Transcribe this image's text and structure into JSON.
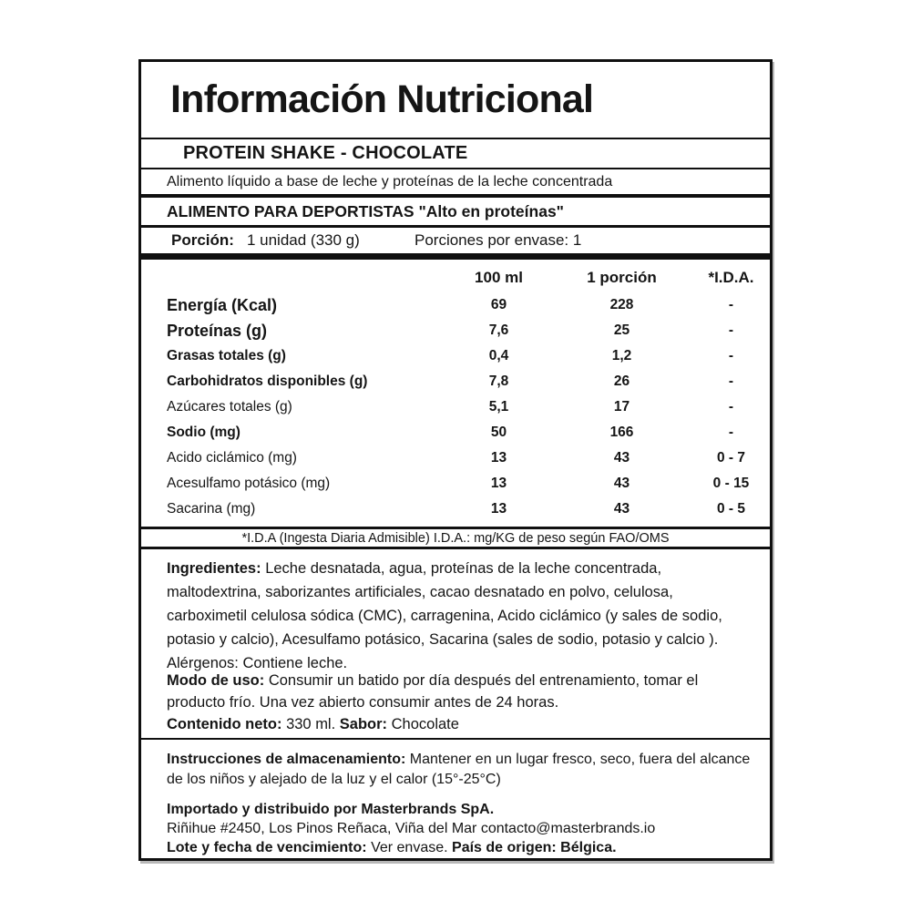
{
  "colors": {
    "ink": "#151515",
    "background": "#ffffff"
  },
  "label": {
    "title": "Información Nutricional",
    "product": "PROTEIN SHAKE - CHOCOLATE",
    "description": "Alimento líquido a base de leche y proteínas de la leche concentrada",
    "claim": "ALIMENTO PARA DEPORTISTAS \"Alto en proteínas\"",
    "serving": {
      "label": "Porción:",
      "value": "1 unidad (330 g)",
      "per_container": "Porciones por envase: 1"
    },
    "table": {
      "columns": [
        "100 ml",
        "1 porción",
        "*I.D.A."
      ],
      "rows": [
        {
          "name": "Energía (Kcal)",
          "per100": "69",
          "porcion": "228",
          "ida": "-"
        },
        {
          "name": "Proteínas (g)",
          "per100": "7,6",
          "porcion": "25",
          "ida": "-"
        },
        {
          "name": "Grasas totales (g)",
          "per100": "0,4",
          "porcion": "1,2",
          "ida": "-"
        },
        {
          "name": "Carbohidratos disponibles (g)",
          "per100": "7,8",
          "porcion": "26",
          "ida": "-"
        },
        {
          "name": "Azúcares totales (g)",
          "per100": "5,1",
          "porcion": "17",
          "ida": "-"
        },
        {
          "name": "Sodio (mg)",
          "per100": "50",
          "porcion": "166",
          "ida": "-"
        },
        {
          "name": "Acido ciclámico (mg)",
          "per100": "13",
          "porcion": "43",
          "ida": "0 - 7"
        },
        {
          "name": "Acesulfamo potásico (mg)",
          "per100": "13",
          "porcion": "43",
          "ida": "0 - 15"
        },
        {
          "name": "Sacarina (mg)",
          "per100": "13",
          "porcion": "43",
          "ida": "0 - 5"
        }
      ],
      "footnote": "*I.D.A (Ingesta Diaria Admisible) I.D.A.: mg/KG de peso según FAO/OMS"
    },
    "ingredients": {
      "label": "Ingredientes:",
      "text": "Leche desnatada, agua, proteínas de la leche concentrada, maltodextrina, saborizantes artificiales, cacao desnatado en polvo, celulosa, carboximetil celulosa sódica (CMC), carragenina, Acido ciclámico (y sales de sodio, potasio y calcio), Acesulfamo potásico, Sacarina (sales de sodio, potasio y calcio ). Alérgenos: Contiene leche."
    },
    "modo": {
      "label": "Modo de uso:",
      "text": "Consumir un batido por día después del entrenamiento, tomar el producto frío. Una vez abierto consumir antes de 24 horas."
    },
    "contenido": {
      "label": "Contenido neto:",
      "value": "330 ml.",
      "sabor_label": "Sabor:",
      "sabor_value": "Chocolate"
    },
    "storage": {
      "label": "Instrucciones de almacenamiento:",
      "text": "Mantener en un lugar fresco, seco, fuera del alcance de los niños y alejado de la luz y el calor (15°-25°C)"
    },
    "importer": {
      "title": "Importado y distribuido por Masterbrands SpA.",
      "address": "Riñihue #2450, Los Pinos Reñaca, Viña del Mar contacto@masterbrands.io",
      "lote_label": "Lote y fecha de vencimiento:",
      "lote_value": "Ver envase.",
      "origin_label": "País de origen:",
      "origin_value": "Bélgica."
    }
  }
}
